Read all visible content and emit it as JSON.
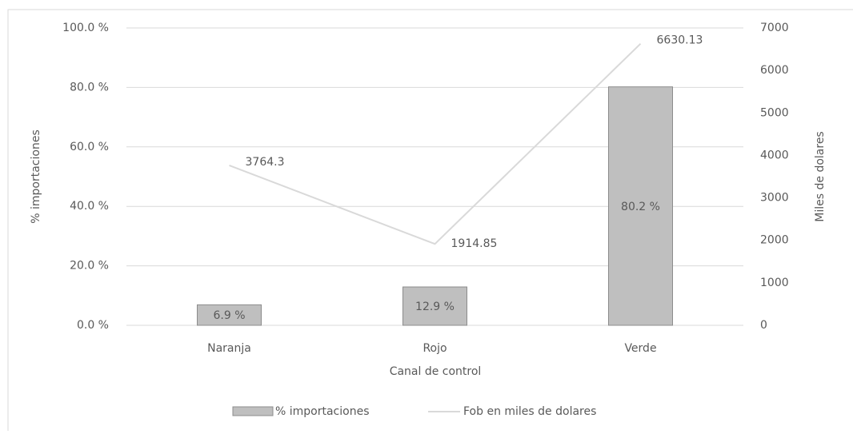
{
  "chart_data": {
    "type": "bar",
    "categories": [
      "Naranja",
      "Rojo",
      "Verde"
    ],
    "x_label": "Canal de control",
    "y_label": "% importaciones",
    "y2_label": "Miles de dolares",
    "ylim": [
      0,
      100
    ],
    "yticks": [
      {
        "value": 0,
        "label": "0.0 %"
      },
      {
        "value": 20,
        "label": "20.0 %"
      },
      {
        "value": 40,
        "label": "40.0 %"
      },
      {
        "value": 60,
        "label": "60.0 %"
      },
      {
        "value": 80,
        "label": "80.0 %"
      },
      {
        "value": 100,
        "label": "100.0 %"
      }
    ],
    "y2lim": [
      0,
      7000
    ],
    "y2ticks": [
      0,
      1000,
      2000,
      3000,
      4000,
      5000,
      6000,
      7000
    ],
    "grid": true,
    "legend": "bottom",
    "series": [
      {
        "name": "% importaciones",
        "type": "bar",
        "color": "#bfbfbf",
        "values": [
          6.9,
          12.9,
          80.2
        ],
        "value_labels": [
          "6.9 %",
          "12.9 %",
          "80.2 %"
        ]
      },
      {
        "name": "Fob en miles de dolares",
        "type": "line",
        "axis": "y2",
        "color": "#d9d9d9",
        "values": [
          3764.3,
          1914.85,
          6630.13
        ]
      }
    ]
  }
}
